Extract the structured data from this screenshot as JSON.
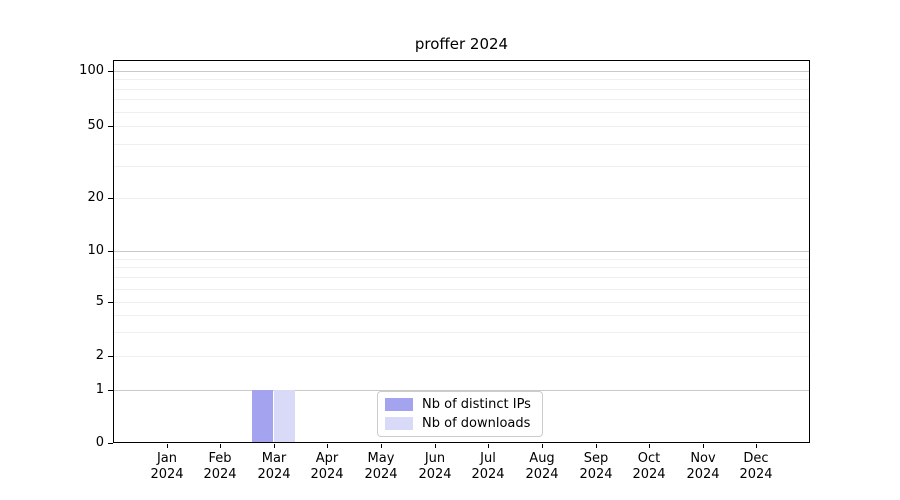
{
  "chart_data": {
    "type": "bar",
    "title": "proffer 2024",
    "xlabel": "",
    "ylabel": "",
    "categories": [
      "Jan 2024",
      "Feb 2024",
      "Mar 2024",
      "Apr 2024",
      "May 2024",
      "Jun 2024",
      "Jul 2024",
      "Aug 2024",
      "Sep 2024",
      "Oct 2024",
      "Nov 2024",
      "Dec 2024"
    ],
    "series": [
      {
        "name": "Nb of distinct IPs",
        "color": "#a3a3ef",
        "values": [
          0,
          0,
          1,
          0,
          0,
          0,
          0,
          0,
          0,
          0,
          0,
          0
        ]
      },
      {
        "name": "Nb of downloads",
        "color": "#d9d9f8",
        "values": [
          0,
          0,
          1,
          0,
          0,
          0,
          0,
          0,
          0,
          0,
          0,
          0
        ]
      }
    ],
    "yticks": [
      0,
      1,
      2,
      5,
      10,
      20,
      50,
      100
    ],
    "yscale": "symlog",
    "ylim": [
      0,
      115
    ],
    "grid": "horizontal, minor and major gridlines",
    "legend_position": "lower center inside plot"
  }
}
